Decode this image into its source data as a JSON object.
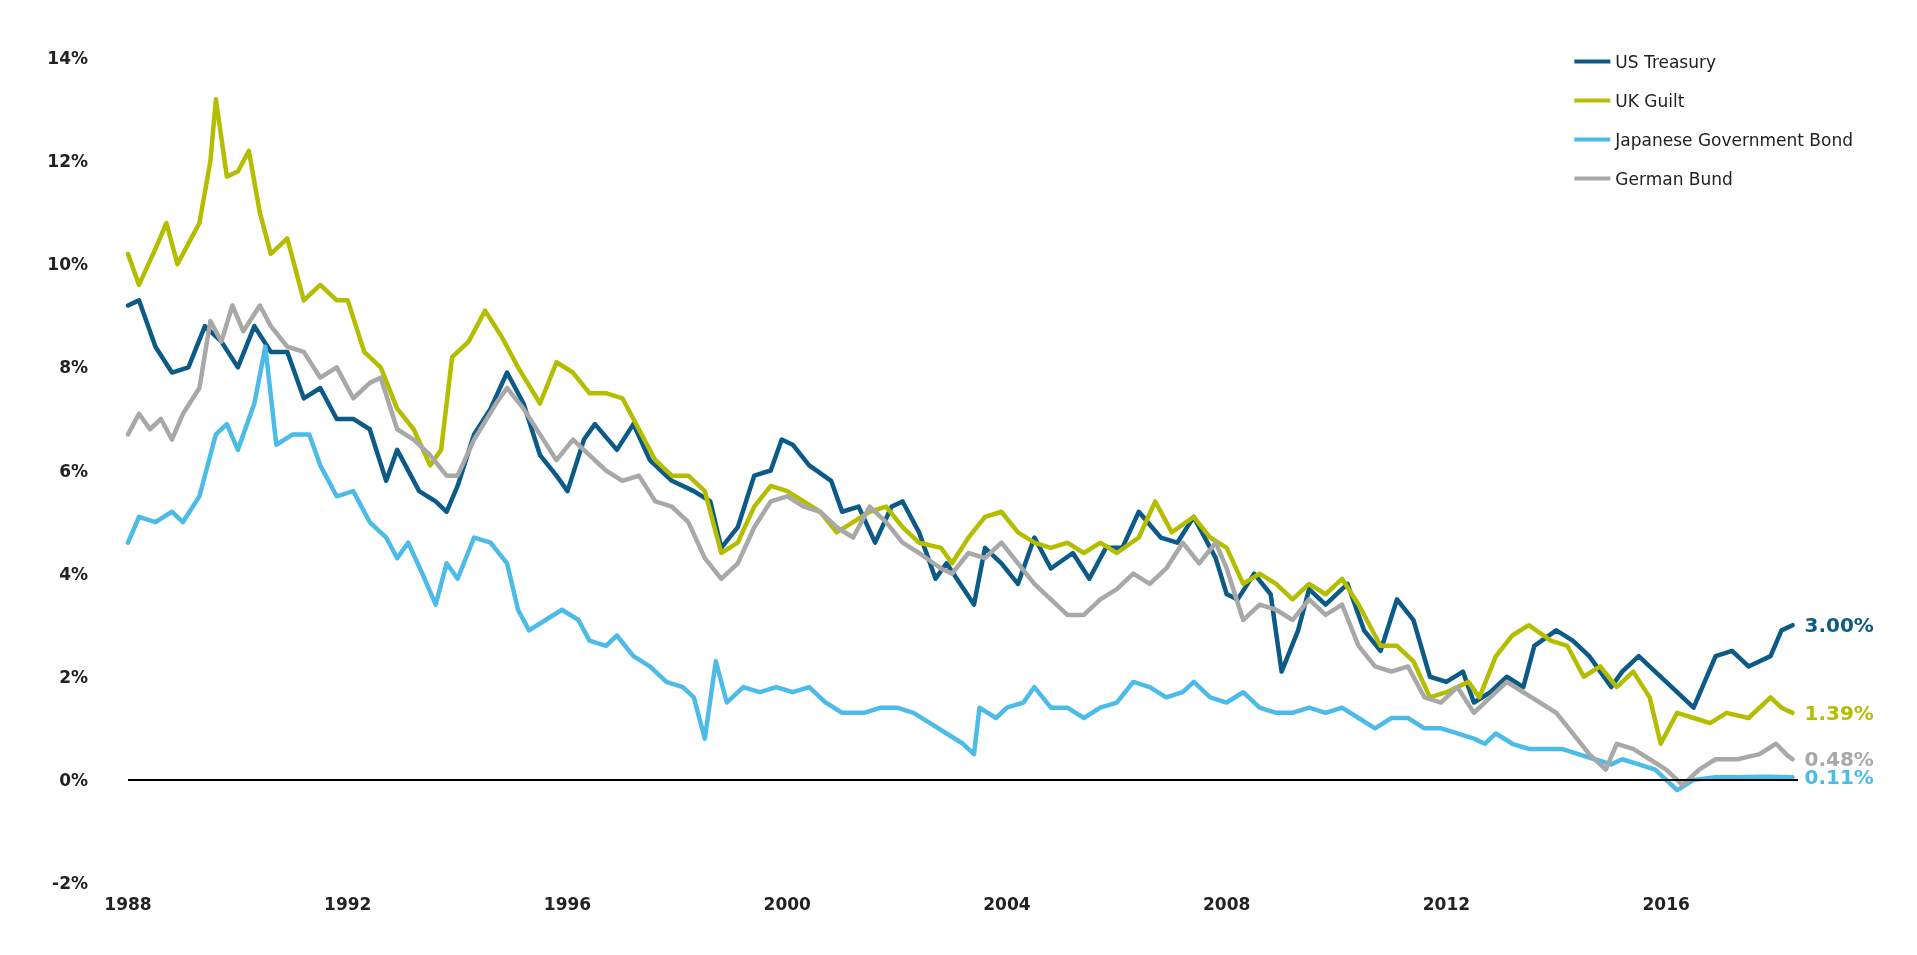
{
  "chart_data": {
    "type": "line",
    "xlim": [
      1988,
      2018.4
    ],
    "xticks": [
      1988,
      1992,
      1996,
      2000,
      2004,
      2008,
      2012,
      2016
    ],
    "ylim": [
      -2,
      14
    ],
    "yticks": [
      {
        "value": -2,
        "label": "-2%"
      },
      {
        "value": 0,
        "label": "0%"
      },
      {
        "value": 2,
        "label": "2%"
      },
      {
        "value": 4,
        "label": "4%"
      },
      {
        "value": 6,
        "label": "6%"
      },
      {
        "value": 8,
        "label": "8%"
      },
      {
        "value": 10,
        "label": "10%"
      },
      {
        "value": 12,
        "label": "12%"
      },
      {
        "value": 14,
        "label": "14%"
      }
    ],
    "grid": false,
    "ref_lines": [
      {
        "axis": "y",
        "value": 0,
        "color": "#000000"
      }
    ],
    "legend": "top right",
    "marker": "none",
    "line_style": "solid",
    "series": [
      {
        "name": "US Treasury",
        "color": "#0b5a87",
        "x": [
          1988.0,
          1988.2,
          1988.5,
          1988.8,
          1989.1,
          1989.4,
          1989.7,
          1990.0,
          1990.3,
          1990.6,
          1990.9,
          1991.2,
          1991.5,
          1991.8,
          1992.1,
          1992.4,
          1992.7,
          1992.9,
          1993.3,
          1993.6,
          1993.8,
          1994.0,
          1994.3,
          1994.6,
          1994.9,
          1995.2,
          1995.5,
          1995.8,
          1996.0,
          1996.3,
          1996.5,
          1996.9,
          1997.2,
          1997.5,
          1997.9,
          1998.3,
          1998.6,
          1998.8,
          1999.1,
          1999.4,
          1999.7,
          1999.9,
          2000.1,
          2000.4,
          2000.8,
          2001.0,
          2001.3,
          2001.6,
          2001.9,
          2002.1,
          2002.4,
          2002.7,
          2002.9,
          2003.4,
          2003.6,
          2003.9,
          2004.2,
          2004.5,
          2004.8,
          2005.2,
          2005.5,
          2005.8,
          2006.1,
          2006.4,
          2006.8,
          2007.1,
          2007.4,
          2007.8,
          2008.0,
          2008.2,
          2008.5,
          2008.8,
          2009.0,
          2009.3,
          2009.5,
          2009.8,
          2010.2,
          2010.5,
          2010.8,
          2011.1,
          2011.4,
          2011.7,
          2012.0,
          2012.3,
          2012.5,
          2012.8,
          2013.1,
          2013.4,
          2013.6,
          2014.0,
          2014.3,
          2014.6,
          2015.0,
          2015.2,
          2015.5,
          2015.8,
          2016.0,
          2016.5,
          2016.9,
          2017.2,
          2017.5,
          2017.9,
          2018.1,
          2018.3
        ],
        "values": [
          9.2,
          9.3,
          8.4,
          7.9,
          8.0,
          8.8,
          8.5,
          8.0,
          8.8,
          8.3,
          8.3,
          7.4,
          7.6,
          7.0,
          7.0,
          6.8,
          5.8,
          6.4,
          5.6,
          5.4,
          5.2,
          5.7,
          6.7,
          7.2,
          7.9,
          7.3,
          6.3,
          5.9,
          5.6,
          6.6,
          6.9,
          6.4,
          6.9,
          6.2,
          5.8,
          5.6,
          5.4,
          4.5,
          4.9,
          5.9,
          6.0,
          6.6,
          6.5,
          6.1,
          5.8,
          5.2,
          5.3,
          4.6,
          5.3,
          5.4,
          4.8,
          3.9,
          4.2,
          3.4,
          4.5,
          4.2,
          3.8,
          4.7,
          4.1,
          4.4,
          3.9,
          4.5,
          4.5,
          5.2,
          4.7,
          4.6,
          5.1,
          4.3,
          3.6,
          3.5,
          4.0,
          3.6,
          2.1,
          2.9,
          3.7,
          3.4,
          3.8,
          2.9,
          2.5,
          3.5,
          3.1,
          2.0,
          1.9,
          2.1,
          1.5,
          1.7,
          2.0,
          1.8,
          2.6,
          2.9,
          2.7,
          2.4,
          1.8,
          2.1,
          2.4,
          2.1,
          1.9,
          1.4,
          2.4,
          2.5,
          2.2,
          2.4,
          2.9,
          3.0
        ]
      },
      {
        "name": "UK Guilt",
        "color": "#b5bd00",
        "x": [
          1988.0,
          1988.2,
          1988.5,
          1988.7,
          1988.9,
          1989.1,
          1989.3,
          1989.5,
          1989.6,
          1989.8,
          1990.0,
          1990.2,
          1990.4,
          1990.6,
          1990.9,
          1991.2,
          1991.5,
          1991.8,
          1992.0,
          1992.3,
          1992.6,
          1992.9,
          1993.2,
          1993.5,
          1993.7,
          1993.9,
          1994.2,
          1994.5,
          1994.8,
          1995.1,
          1995.5,
          1995.8,
          1996.1,
          1996.4,
          1996.7,
          1997.0,
          1997.3,
          1997.6,
          1997.9,
          1998.2,
          1998.5,
          1998.8,
          1999.1,
          1999.4,
          1999.7,
          2000.0,
          2000.3,
          2000.6,
          2000.9,
          2001.2,
          2001.5,
          2001.8,
          2002.1,
          2002.4,
          2002.8,
          2003.0,
          2003.3,
          2003.6,
          2003.9,
          2004.2,
          2004.5,
          2004.8,
          2005.1,
          2005.4,
          2005.7,
          2006.0,
          2006.4,
          2006.7,
          2007.0,
          2007.4,
          2007.7,
          2008.0,
          2008.3,
          2008.6,
          2008.9,
          2009.2,
          2009.5,
          2009.8,
          2010.1,
          2010.4,
          2010.8,
          2011.1,
          2011.4,
          2011.7,
          2012.0,
          2012.4,
          2012.6,
          2012.9,
          2013.2,
          2013.5,
          2013.9,
          2014.2,
          2014.5,
          2014.8,
          2015.1,
          2015.4,
          2015.7,
          2015.9,
          2016.2,
          2016.5,
          2016.8,
          2017.1,
          2017.5,
          2017.9,
          2018.1,
          2018.3
        ],
        "values": [
          10.2,
          9.6,
          10.3,
          10.8,
          10.0,
          10.4,
          10.8,
          12.0,
          13.2,
          11.7,
          11.8,
          12.2,
          11.0,
          10.2,
          10.5,
          9.3,
          9.6,
          9.3,
          9.3,
          8.3,
          8.0,
          7.2,
          6.8,
          6.1,
          6.4,
          8.2,
          8.5,
          9.1,
          8.6,
          8.0,
          7.3,
          8.1,
          7.9,
          7.5,
          7.5,
          7.4,
          6.8,
          6.2,
          5.9,
          5.9,
          5.6,
          4.4,
          4.6,
          5.3,
          5.7,
          5.6,
          5.4,
          5.2,
          4.8,
          5.0,
          5.2,
          5.3,
          4.9,
          4.6,
          4.5,
          4.2,
          4.7,
          5.1,
          5.2,
          4.8,
          4.6,
          4.5,
          4.6,
          4.4,
          4.6,
          4.4,
          4.7,
          5.4,
          4.8,
          5.1,
          4.7,
          4.5,
          3.8,
          4.0,
          3.8,
          3.5,
          3.8,
          3.6,
          3.9,
          3.4,
          2.6,
          2.6,
          2.3,
          1.6,
          1.7,
          1.9,
          1.6,
          2.4,
          2.8,
          3.0,
          2.7,
          2.6,
          2.0,
          2.2,
          1.8,
          2.1,
          1.6,
          0.7,
          1.3,
          1.2,
          1.1,
          1.3,
          1.2,
          1.6,
          1.4,
          1.3
        ]
      },
      {
        "name": "Japanese Government Bond",
        "color": "#4dbbe8",
        "x": [
          1988.0,
          1988.2,
          1988.5,
          1988.8,
          1989.0,
          1989.3,
          1989.6,
          1989.8,
          1990.0,
          1990.3,
          1990.5,
          1990.7,
          1991.0,
          1991.3,
          1991.5,
          1991.8,
          1992.1,
          1992.4,
          1992.7,
          1992.9,
          1993.1,
          1993.4,
          1993.6,
          1993.8,
          1994.0,
          1994.3,
          1994.6,
          1994.9,
          1995.1,
          1995.3,
          1995.6,
          1995.9,
          1996.2,
          1996.4,
          1996.7,
          1996.9,
          1997.2,
          1997.5,
          1997.8,
          1998.1,
          1998.3,
          1998.5,
          1998.7,
          1998.9,
          1999.2,
          1999.5,
          1999.8,
          2000.1,
          2000.4,
          2000.7,
          2001.0,
          2001.4,
          2001.7,
          2002.0,
          2002.3,
          2002.6,
          2002.9,
          2003.2,
          2003.4,
          2003.5,
          2003.8,
          2004.0,
          2004.3,
          2004.5,
          2004.8,
          2005.1,
          2005.4,
          2005.7,
          2006.0,
          2006.3,
          2006.6,
          2006.9,
          2007.2,
          2007.4,
          2007.7,
          2008.0,
          2008.3,
          2008.6,
          2008.9,
          2009.2,
          2009.5,
          2009.8,
          2010.1,
          2010.4,
          2010.7,
          2011.0,
          2011.3,
          2011.6,
          2011.9,
          2012.2,
          2012.5,
          2012.7,
          2012.9,
          2013.2,
          2013.5,
          2013.8,
          2014.1,
          2014.4,
          2014.7,
          2015.0,
          2015.2,
          2015.5,
          2015.8,
          2016.0,
          2016.2,
          2016.5,
          2016.9,
          2017.3,
          2017.8,
          2018.3
        ],
        "values": [
          4.6,
          5.1,
          5.0,
          5.2,
          5.0,
          5.5,
          6.7,
          6.9,
          6.4,
          7.3,
          8.4,
          6.5,
          6.7,
          6.7,
          6.1,
          5.5,
          5.6,
          5.0,
          4.7,
          4.3,
          4.6,
          3.9,
          3.4,
          4.2,
          3.9,
          4.7,
          4.6,
          4.2,
          3.3,
          2.9,
          3.1,
          3.3,
          3.1,
          2.7,
          2.6,
          2.8,
          2.4,
          2.2,
          1.9,
          1.8,
          1.6,
          0.8,
          2.3,
          1.5,
          1.8,
          1.7,
          1.8,
          1.7,
          1.8,
          1.5,
          1.3,
          1.3,
          1.4,
          1.4,
          1.3,
          1.1,
          0.9,
          0.7,
          0.5,
          1.4,
          1.2,
          1.4,
          1.5,
          1.8,
          1.4,
          1.4,
          1.2,
          1.4,
          1.5,
          1.9,
          1.8,
          1.6,
          1.7,
          1.9,
          1.6,
          1.5,
          1.7,
          1.4,
          1.3,
          1.3,
          1.4,
          1.3,
          1.4,
          1.2,
          1.0,
          1.2,
          1.2,
          1.0,
          1.0,
          0.9,
          0.8,
          0.7,
          0.9,
          0.7,
          0.6,
          0.6,
          0.6,
          0.5,
          0.4,
          0.3,
          0.4,
          0.3,
          0.2,
          0.0,
          -0.2,
          0.0,
          0.05,
          0.05,
          0.06,
          0.05
        ]
      },
      {
        "name": "German Bund",
        "color": "#a8a8a8",
        "x": [
          1988.0,
          1988.2,
          1988.4,
          1988.6,
          1988.8,
          1989.0,
          1989.3,
          1989.5,
          1989.7,
          1989.9,
          1990.1,
          1990.4,
          1990.6,
          1990.9,
          1991.2,
          1991.5,
          1991.8,
          1992.1,
          1992.4,
          1992.6,
          1992.9,
          1993.2,
          1993.5,
          1993.8,
          1994.0,
          1994.3,
          1994.7,
          1994.9,
          1995.2,
          1995.5,
          1995.8,
          1996.1,
          1996.4,
          1996.7,
          1997.0,
          1997.3,
          1997.6,
          1997.9,
          1998.2,
          1998.5,
          1998.8,
          1999.1,
          1999.4,
          1999.7,
          2000.0,
          2000.3,
          2000.6,
          2000.9,
          2001.2,
          2001.5,
          2001.8,
          2002.1,
          2002.4,
          2002.8,
          2003.0,
          2003.3,
          2003.6,
          2003.9,
          2004.2,
          2004.5,
          2004.8,
          2005.1,
          2005.4,
          2005.7,
          2006.0,
          2006.3,
          2006.6,
          2006.9,
          2007.2,
          2007.5,
          2007.8,
          2008.0,
          2008.3,
          2008.6,
          2008.9,
          2009.2,
          2009.5,
          2009.8,
          2010.1,
          2010.4,
          2010.7,
          2011.0,
          2011.3,
          2011.6,
          2011.9,
          2012.2,
          2012.5,
          2012.8,
          2013.1,
          2013.4,
          2013.7,
          2014.0,
          2014.3,
          2014.6,
          2014.9,
          2015.1,
          2015.4,
          2015.7,
          2016.0,
          2016.3,
          2016.6,
          2016.9,
          2017.3,
          2017.7,
          2018.0,
          2018.2,
          2018.3
        ],
        "values": [
          6.7,
          7.1,
          6.8,
          7.0,
          6.6,
          7.1,
          7.6,
          8.9,
          8.5,
          9.2,
          8.7,
          9.2,
          8.8,
          8.4,
          8.3,
          7.8,
          8.0,
          7.4,
          7.7,
          7.8,
          6.8,
          6.6,
          6.3,
          5.9,
          5.9,
          6.6,
          7.3,
          7.6,
          7.2,
          6.7,
          6.2,
          6.6,
          6.3,
          6.0,
          5.8,
          5.9,
          5.4,
          5.3,
          5.0,
          4.3,
          3.9,
          4.2,
          4.9,
          5.4,
          5.5,
          5.3,
          5.2,
          4.9,
          4.7,
          5.3,
          5.0,
          4.6,
          4.4,
          4.1,
          4.0,
          4.4,
          4.3,
          4.6,
          4.2,
          3.8,
          3.5,
          3.2,
          3.2,
          3.5,
          3.7,
          4.0,
          3.8,
          4.1,
          4.6,
          4.2,
          4.6,
          4.1,
          3.1,
          3.4,
          3.3,
          3.1,
          3.5,
          3.2,
          3.4,
          2.6,
          2.2,
          2.1,
          2.2,
          1.6,
          1.5,
          1.8,
          1.3,
          1.6,
          1.9,
          1.7,
          1.5,
          1.3,
          0.9,
          0.5,
          0.2,
          0.7,
          0.6,
          0.4,
          0.2,
          -0.1,
          0.2,
          0.4,
          0.4,
          0.5,
          0.7,
          0.48,
          0.4
        ]
      }
    ],
    "annotations": [
      "3.00%",
      "1.39%",
      "0.11%",
      "0.48%"
    ]
  }
}
